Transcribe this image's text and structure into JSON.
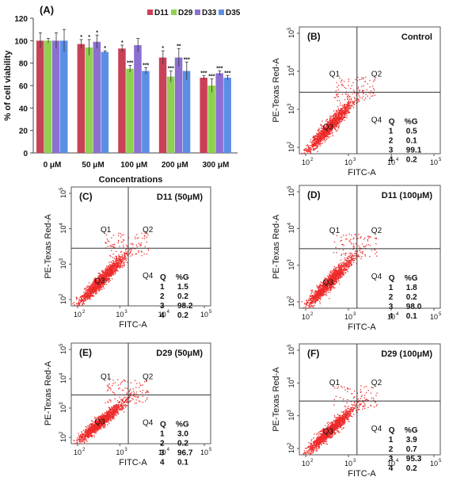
{
  "bar_panel": {
    "panel_label": "(A)",
    "ylabel": "% of cell viability",
    "xlabel": "Concentrations",
    "colors": [
      "#c94158",
      "#8fd14f",
      "#8b6fd1",
      "#5b8fe6"
    ]
  },
  "flow_axis": {
    "xlabel": "FITC-A",
    "ylabel": "PE-Texas Red-A",
    "quadrant_labels": [
      "Q1",
      "Q2",
      "Q3",
      "Q4"
    ],
    "table_headers": [
      "Q",
      "%G"
    ],
    "tick_base": "10",
    "tick_exps": [
      "2",
      "3",
      "4",
      "5"
    ],
    "dot_color": "#ee2a2a"
  },
  "chart_data": [
    {
      "type": "bar",
      "title": "",
      "categories": [
        "0 μM",
        "50 μM",
        "100 μM",
        "200 μM",
        "300 μM"
      ],
      "series": [
        {
          "name": "D11",
          "values": [
            100,
            97,
            93,
            85,
            67
          ],
          "errors": [
            7,
            4,
            3,
            6,
            2
          ],
          "marks": [
            "",
            "*",
            "*",
            "*",
            "***"
          ]
        },
        {
          "name": "D29",
          "values": [
            100,
            94,
            75,
            68,
            60
          ],
          "errors": [
            2,
            7,
            3,
            5,
            6
          ],
          "marks": [
            "",
            "*",
            "***",
            "***",
            "***"
          ]
        },
        {
          "name": "D33",
          "values": [
            100,
            99,
            96,
            85,
            71
          ],
          "errors": [
            7,
            6,
            6,
            8,
            2
          ],
          "marks": [
            "",
            "*",
            "",
            "**",
            "***"
          ]
        },
        {
          "name": "D35",
          "values": [
            100,
            90,
            73,
            73,
            67
          ],
          "errors": [
            10,
            1,
            3,
            8,
            2
          ],
          "marks": [
            "",
            "*",
            "***",
            "***",
            "***"
          ]
        }
      ],
      "yticks": [
        "0",
        "20",
        "40",
        "60",
        "80",
        "100",
        "120"
      ],
      "ylim": [
        0,
        120
      ],
      "grid": false,
      "legend": "top-right"
    },
    {
      "type": "scatter",
      "panel": "(B)",
      "title": "Control",
      "quadrant_table": [
        [
          "1",
          "0.5"
        ],
        [
          "2",
          "0.1"
        ],
        [
          "3",
          "99.1"
        ],
        [
          "4",
          "0.2"
        ]
      ]
    },
    {
      "type": "scatter",
      "panel": "(C)",
      "title": "D11 (50μM)",
      "quadrant_table": [
        [
          "1",
          "1.5"
        ],
        [
          "2",
          "0.2"
        ],
        [
          "3",
          "98.2"
        ],
        [
          "4",
          "0.2"
        ]
      ]
    },
    {
      "type": "scatter",
      "panel": "(D)",
      "title": "D11 (100μM)",
      "quadrant_table": [
        [
          "1",
          "1.8"
        ],
        [
          "2",
          "0.2"
        ],
        [
          "3",
          "98.0"
        ],
        [
          "4",
          "0.1"
        ]
      ]
    },
    {
      "type": "scatter",
      "panel": "(E)",
      "title": "D29 (50μM)",
      "quadrant_table": [
        [
          "1",
          "3.0"
        ],
        [
          "2",
          "0.2"
        ],
        [
          "3",
          "96.7"
        ],
        [
          "4",
          "0.1"
        ]
      ]
    },
    {
      "type": "scatter",
      "panel": "(F)",
      "title": "D29 (100μM)",
      "quadrant_table": [
        [
          "1",
          "3.9"
        ],
        [
          "2",
          "0.7"
        ],
        [
          "3",
          "95.3"
        ],
        [
          "4",
          "0.2"
        ]
      ]
    }
  ]
}
